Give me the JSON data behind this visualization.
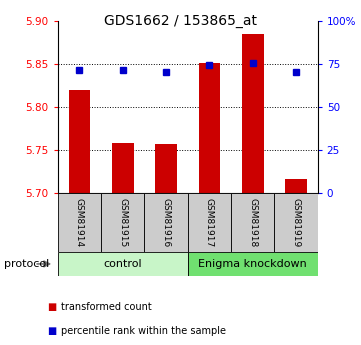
{
  "title": "GDS1662 / 153865_at",
  "samples": [
    "GSM81914",
    "GSM81915",
    "GSM81916",
    "GSM81917",
    "GSM81918",
    "GSM81919"
  ],
  "red_values": [
    5.82,
    5.758,
    5.757,
    5.851,
    5.885,
    5.716
  ],
  "blue_values": [
    5.843,
    5.843,
    5.841,
    5.849,
    5.851,
    5.841
  ],
  "ylim_left": [
    5.7,
    5.9
  ],
  "ylim_right": [
    0,
    100
  ],
  "yticks_left": [
    5.7,
    5.75,
    5.8,
    5.85,
    5.9
  ],
  "yticks_right": [
    0,
    25,
    50,
    75,
    100
  ],
  "ytick_labels_right": [
    "0",
    "25",
    "50",
    "75",
    "100%"
  ],
  "groups": [
    {
      "label": "control",
      "start": 0,
      "end": 3,
      "color": "#c8f5c8"
    },
    {
      "label": "Enigma knockdown",
      "start": 3,
      "end": 6,
      "color": "#70e070"
    }
  ],
  "bar_color": "#cc0000",
  "blue_color": "#0000cc",
  "bar_baseline": 5.7,
  "bar_width": 0.5,
  "sample_box_color": "#cccccc",
  "protocol_label": "protocol",
  "legend_items": [
    {
      "label": "transformed count",
      "color": "#cc0000"
    },
    {
      "label": "percentile rank within the sample",
      "color": "#0000cc"
    }
  ],
  "figsize": [
    3.61,
    3.45
  ],
  "dpi": 100,
  "title_fontsize": 10,
  "tick_fontsize": 7.5,
  "sample_fontsize": 6.5,
  "group_fontsize": 8,
  "legend_fontsize": 7,
  "protocol_fontsize": 8
}
